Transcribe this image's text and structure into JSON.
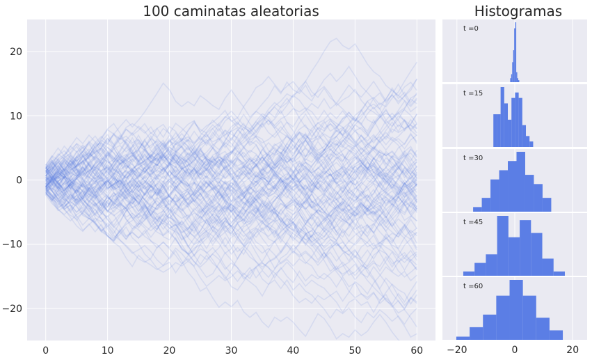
{
  "colors": {
    "background": "#eaeaf2",
    "grid": "#ffffff",
    "walk_line": "#4c72e0",
    "hist_bar": "#5b7ee5",
    "text": "#262626"
  },
  "chart_data": [
    {
      "type": "line",
      "title": "100 caminatas aleatorias",
      "xlim": [
        -3,
        63
      ],
      "ylim": [
        -25,
        25
      ],
      "xticks": [
        "0",
        "10",
        "20",
        "30",
        "40",
        "50",
        "60"
      ],
      "yticks": [
        "20",
        "10",
        "0",
        "−10",
        "−20"
      ],
      "grid": true,
      "series_count": 100,
      "steps": 61
    },
    {
      "type": "bar",
      "title": "Histogramas",
      "xlim": [
        -25,
        25
      ],
      "xticks": [
        "−20",
        "0",
        "20"
      ],
      "grid": true,
      "panels": [
        {
          "label": "t =0",
          "bin_start": -1.6,
          "bin_width": 0.35,
          "counts": [
            2,
            4,
            10,
            16,
            27,
            30,
            5,
            2,
            1
          ]
        },
        {
          "label": "t =15",
          "bin_start": -7.4,
          "bin_width": 1.25,
          "counts": [
            6,
            6,
            11,
            8,
            5,
            9,
            10,
            9,
            4,
            2,
            1
          ]
        },
        {
          "label": "t =30",
          "bin_start": -14.4,
          "bin_width": 3.0,
          "counts": [
            1,
            3,
            7,
            9,
            11,
            13,
            8,
            6,
            3
          ]
        },
        {
          "label": "t =45",
          "bin_start": -17.8,
          "bin_width": 3.9,
          "counts": [
            1,
            3,
            5,
            14,
            9,
            13,
            10,
            4,
            1
          ]
        },
        {
          "label": "t =60",
          "bin_start": -24.8,
          "bin_width": 4.6,
          "counts": [
            0,
            1,
            4,
            8,
            14,
            19,
            14,
            7,
            3
          ]
        }
      ]
    }
  ]
}
